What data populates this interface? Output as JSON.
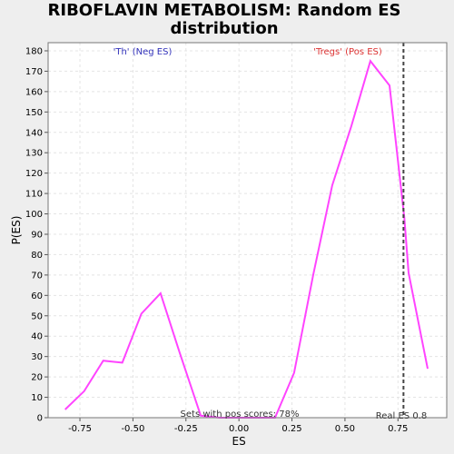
{
  "chart_data": {
    "type": "line",
    "title_lines": [
      "RIBOFLAVIN METABOLISM: Random ES",
      "distribution"
    ],
    "xlabel": "ES",
    "ylabel": "P(ES)",
    "xlim": [
      -0.9,
      0.98
    ],
    "ylim": [
      0,
      184
    ],
    "xticks": [
      -0.75,
      -0.5,
      -0.25,
      0.0,
      0.25,
      0.5,
      0.75
    ],
    "xtick_labels": [
      "-0.75",
      "-0.50",
      "-0.25",
      "0.00",
      "0.25",
      "0.50",
      "0.75"
    ],
    "yticks": [
      0,
      10,
      20,
      30,
      40,
      50,
      60,
      70,
      80,
      90,
      100,
      110,
      120,
      130,
      140,
      150,
      160,
      170,
      180
    ],
    "grid": true,
    "series": [
      {
        "color": "#ff44ff",
        "x": [
          -0.82,
          -0.73,
          -0.64,
          -0.55,
          -0.46,
          -0.37,
          -0.28,
          -0.18,
          -0.09,
          0.0,
          0.08,
          0.17,
          0.26,
          0.35,
          0.44,
          0.53,
          0.62,
          0.71,
          0.78,
          0.8,
          0.89
        ],
        "y": [
          4,
          13,
          28,
          27,
          51,
          61,
          32,
          1,
          0,
          0,
          0,
          0,
          22,
          70,
          114,
          143,
          175,
          163,
          98,
          71,
          24
        ]
      }
    ],
    "real_es": 0.776,
    "annotations": {
      "neg_label": "'Th' (Neg ES)",
      "pos_label": "'Tregs' (Pos ES)",
      "sets_label": "Sets with pos scores: 78%",
      "real_es_label": "Real ES 0.8"
    },
    "colors": {
      "neg_label": "#3333bb",
      "pos_label": "#dd3333",
      "line": "#ff44ff",
      "background": "#ffffff",
      "grid": "#e4e4e4"
    }
  }
}
